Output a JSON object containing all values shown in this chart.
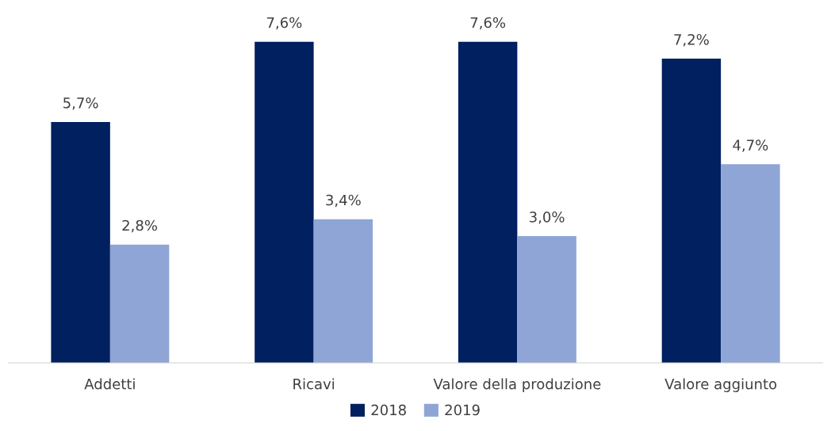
{
  "chart_data": {
    "type": "bar",
    "categories": [
      "Addetti",
      "Ricavi",
      "Valore della produzione",
      "Valore aggiunto"
    ],
    "series": [
      {
        "name": "2018",
        "color": "#002060",
        "values": [
          5.7,
          7.6,
          7.6,
          7.2
        ],
        "value_labels": [
          "5,7%",
          "7,6%",
          "7,6%",
          "7,2%"
        ]
      },
      {
        "name": "2019",
        "color": "#8fa5d6",
        "values": [
          2.8,
          3.4,
          3.0,
          4.7
        ],
        "value_labels": [
          "2,8%",
          "3,4%",
          "3,0%",
          "4,7%"
        ]
      }
    ],
    "legend": "bottom",
    "grid": false
  }
}
